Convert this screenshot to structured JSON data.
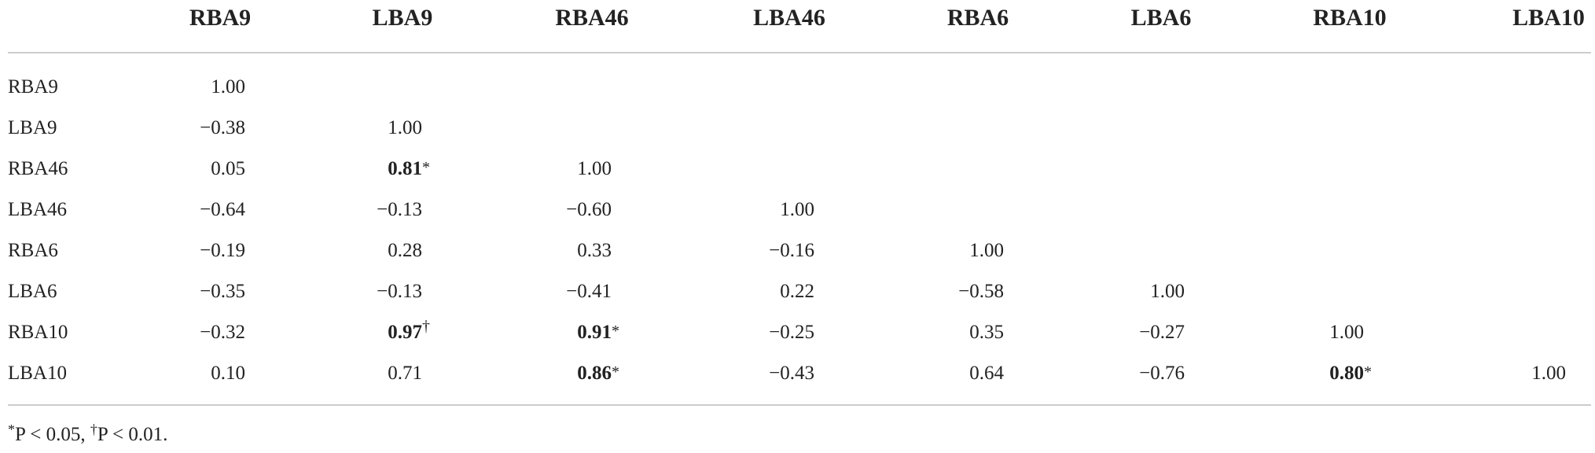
{
  "table": {
    "columns": [
      "RBA9",
      "LBA9",
      "RBA46",
      "LBA46",
      "RBA6",
      "LBA6",
      "RBA10",
      "LBA10"
    ],
    "rows": [
      {
        "label": "RBA9",
        "cells": [
          "1.00"
        ]
      },
      {
        "label": "LBA9",
        "cells": [
          "−0.38",
          "1.00"
        ]
      },
      {
        "label": "RBA46",
        "cells": [
          "0.05",
          {
            "text": "0.81",
            "mark": "*",
            "bold": true
          },
          "1.00"
        ]
      },
      {
        "label": "LBA46",
        "cells": [
          "−0.64",
          "−0.13",
          "−0.60",
          "1.00"
        ]
      },
      {
        "label": "RBA6",
        "cells": [
          "−0.19",
          "0.28",
          "0.33",
          "−0.16",
          "1.00"
        ]
      },
      {
        "label": "LBA6",
        "cells": [
          "−0.35",
          "−0.13",
          "−0.41",
          "0.22",
          "−0.58",
          "1.00"
        ]
      },
      {
        "label": "RBA10",
        "cells": [
          "−0.32",
          {
            "text": "0.97",
            "mark": "†",
            "bold": true
          },
          {
            "text": "0.91",
            "mark": "*",
            "bold": true
          },
          "−0.25",
          "0.35",
          "−0.27",
          "1.00"
        ]
      },
      {
        "label": "LBA10",
        "cells": [
          "0.10",
          "0.71",
          {
            "text": "0.86",
            "mark": "*",
            "bold": true
          },
          "−0.43",
          "0.64",
          "−0.76",
          {
            "text": "0.80",
            "mark": "*",
            "bold": true
          },
          "1.00"
        ]
      }
    ],
    "footnote": [
      {
        "mark": "*",
        "text": "P < 0.05,"
      },
      {
        "mark": "†",
        "text": "P < 0.01."
      }
    ]
  }
}
